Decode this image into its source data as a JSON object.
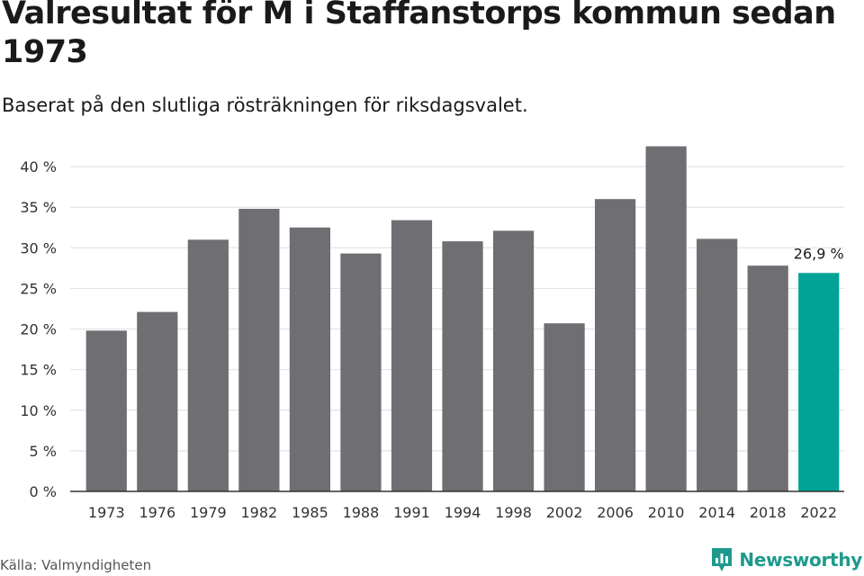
{
  "header": {
    "title": "Valresultat för M i Staffanstorps kommun sedan 1973",
    "subtitle": "Baserat på den slutliga rösträkningen för riksdagsvalet."
  },
  "footer": {
    "source": "Källa: Valmyndigheten",
    "brand_name": "Newsworthy"
  },
  "colors": {
    "bar": "#6f6e73",
    "highlight": "#00a396",
    "grid": "#e3e3e3",
    "axis": "#333333",
    "brand": "#1d9a8c"
  },
  "icons": {
    "brand_logo": "newsworthy-logo-icon"
  },
  "chart_data": {
    "type": "bar",
    "categories": [
      "1973",
      "1976",
      "1979",
      "1982",
      "1985",
      "1988",
      "1991",
      "1994",
      "1998",
      "2002",
      "2006",
      "2010",
      "2014",
      "2018",
      "2022"
    ],
    "values": [
      19.8,
      22.1,
      31.0,
      34.8,
      32.5,
      29.3,
      33.4,
      30.8,
      32.1,
      20.7,
      36.0,
      42.5,
      31.1,
      27.8,
      26.9
    ],
    "highlight_index": 14,
    "data_labels": [
      {
        "index": 14,
        "text": "26,9 %"
      }
    ],
    "yticks": [
      "0 %",
      "5 %",
      "10 %",
      "15 %",
      "20 %",
      "25 %",
      "30 %",
      "35 %",
      "40 %"
    ],
    "ylim": [
      0,
      45
    ],
    "ytick_step": 5,
    "grid": true,
    "legend": "none"
  }
}
